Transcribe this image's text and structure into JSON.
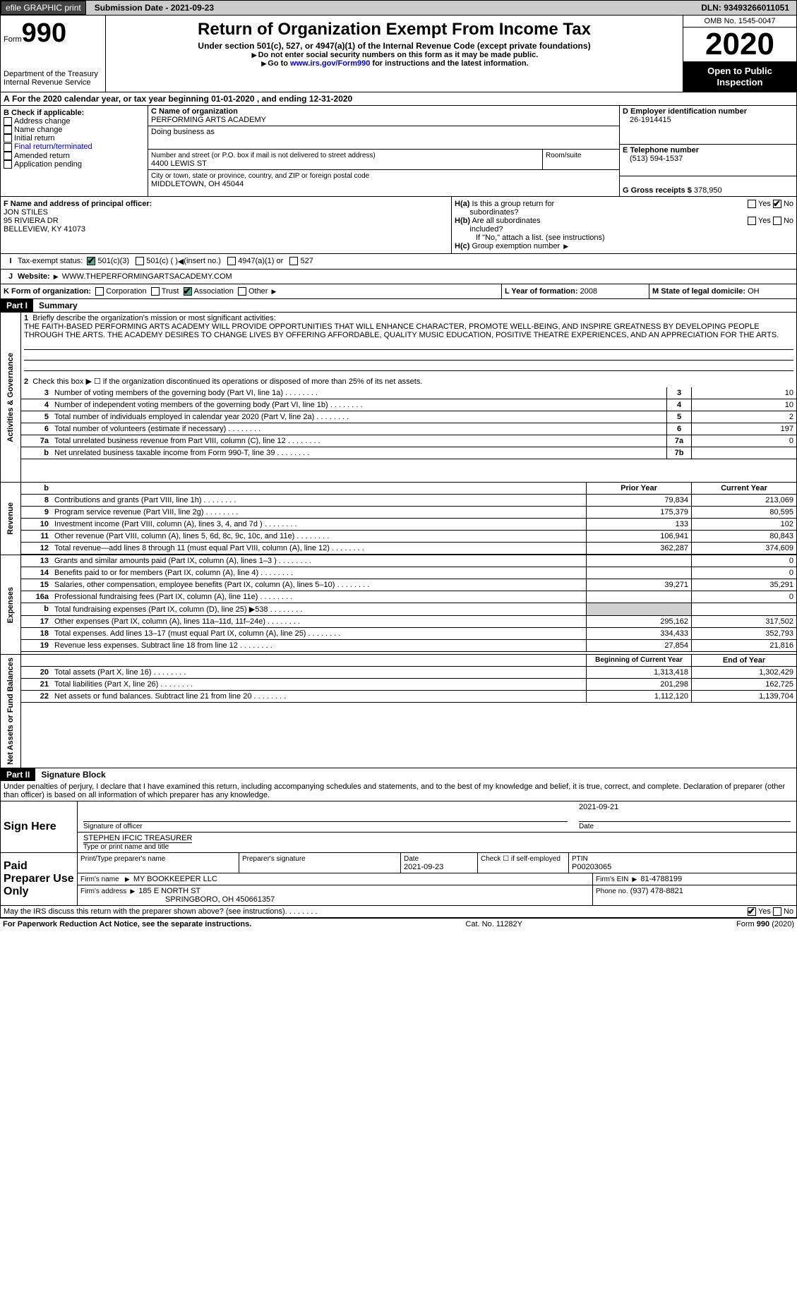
{
  "topbar": {
    "efile": "efile GRAPHIC print",
    "submission": "Submission Date - 2021-09-23",
    "dln": "DLN: 93493266011051"
  },
  "header": {
    "form_prefix": "Form",
    "form_number": "990",
    "dept": "Department of the Treasury\nInternal Revenue Service",
    "title": "Return of Organization Exempt From Income Tax",
    "subtitle1": "Under section 501(c), 527, or 4947(a)(1) of the Internal Revenue Code (except private foundations)",
    "subtitle2a": "Do not enter social security numbers on this form as it may be made public.",
    "subtitle2b_pre": "Go to ",
    "subtitle2b_link": "www.irs.gov/Form990",
    "subtitle2b_post": " for instructions and the latest information.",
    "omb": "OMB No. 1545-0047",
    "year": "2020",
    "inspection": "Open to Public Inspection"
  },
  "section_a": {
    "taxyear": "For the 2020 calendar year, or tax year beginning 01-01-2020   , and ending 12-31-2020",
    "b_label": "B Check if applicable:",
    "b_items": [
      "Address change",
      "Name change",
      "Initial return",
      "Final return/terminated",
      "Amended return",
      "Application pending"
    ],
    "c_label": "C Name of organization",
    "c_name": "PERFORMING ARTS ACADEMY",
    "dba": "Doing business as",
    "addr_label": "Number and street (or P.O. box if mail is not delivered to street address)",
    "room_label": "Room/suite",
    "addr": "4400 LEWIS ST",
    "city_label": "City or town, state or province, country, and ZIP or foreign postal code",
    "city": "MIDDLETOWN, OH  45044",
    "d_label": "D Employer identification number",
    "d_val": "26-1914415",
    "e_label": "E Telephone number",
    "e_val": "(513) 594-1537",
    "g_label": "G Gross receipts $",
    "g_val": "378,950",
    "f_label": "F Name and address of principal officer:",
    "f_name": "JON STILES",
    "f_addr1": "95 RIVIERA DR",
    "f_addr2": "BELLEVIEW, KY  41073",
    "ha_label": "H(a)  Is this a group return for subordinates?",
    "hb_label": "H(b)  Are all subordinates included?",
    "hb_note": "If \"No,\" attach a list. (see instructions)",
    "hc_label": "H(c)  Group exemption number",
    "yes": "Yes",
    "no": "No",
    "i_label": "Tax-exempt status:",
    "i_501c3": "501(c)(3)",
    "i_501c": "501(c) (  )",
    "i_insert": "(insert no.)",
    "i_4947": "4947(a)(1) or",
    "i_527": "527",
    "j_label": "Website:",
    "j_val": "WWW.THEPERFORMINGARTSACADEMY.COM",
    "k_label": "K Form of organization:",
    "k_corp": "Corporation",
    "k_trust": "Trust",
    "k_assoc": "Association",
    "k_other": "Other",
    "l_label": "L Year of formation:",
    "l_val": "2008",
    "m_label": "M State of legal domicile:",
    "m_val": "OH"
  },
  "part1": {
    "header": "Part I",
    "title": "Summary"
  },
  "governance": {
    "vlabel": "Activities & Governance",
    "line1_label": "Briefly describe the organization's mission or most significant activities:",
    "line1_text": "THE FAITH-BASED PERFORMING ARTS ACADEMY WILL PROVIDE OPPORTUNITIES THAT WILL ENHANCE CHARACTER, PROMOTE WELL-BEING, AND INSPIRE GREATNESS BY DEVELOPING PEOPLE THROUGH THE ARTS. THE ACADEMY DESIRES TO CHANGE LIVES BY OFFERING AFFORDABLE, QUALITY MUSIC EDUCATION, POSITIVE THEATRE EXPERIENCES, AND AN APPRECIATION FOR THE ARTS.",
    "line2": "Check this box ▶ ☐  if the organization discontinued its operations or disposed of more than 25% of its net assets.",
    "lines": [
      {
        "num": "3",
        "desc": "Number of voting members of the governing body (Part VI, line 1a)",
        "box": "3",
        "val": "10"
      },
      {
        "num": "4",
        "desc": "Number of independent voting members of the governing body (Part VI, line 1b)",
        "box": "4",
        "val": "10"
      },
      {
        "num": "5",
        "desc": "Total number of individuals employed in calendar year 2020 (Part V, line 2a)",
        "box": "5",
        "val": "2"
      },
      {
        "num": "6",
        "desc": "Total number of volunteers (estimate if necessary)",
        "box": "6",
        "val": "197"
      },
      {
        "num": "7a",
        "desc": "Total unrelated business revenue from Part VIII, column (C), line 12",
        "box": "7a",
        "val": "0"
      },
      {
        "num": "b",
        "desc": "Net unrelated business taxable income from Form 990-T, line 39",
        "box": "7b",
        "val": ""
      }
    ]
  },
  "revenue": {
    "vlabel": "Revenue",
    "prior": "Prior Year",
    "current": "Current Year",
    "lines": [
      {
        "num": "8",
        "desc": "Contributions and grants (Part VIII, line 1h)",
        "prior": "79,834",
        "curr": "213,069"
      },
      {
        "num": "9",
        "desc": "Program service revenue (Part VIII, line 2g)",
        "prior": "175,379",
        "curr": "80,595"
      },
      {
        "num": "10",
        "desc": "Investment income (Part VIII, column (A), lines 3, 4, and 7d )",
        "prior": "133",
        "curr": "102"
      },
      {
        "num": "11",
        "desc": "Other revenue (Part VIII, column (A), lines 5, 6d, 8c, 9c, 10c, and 11e)",
        "prior": "106,941",
        "curr": "80,843"
      },
      {
        "num": "12",
        "desc": "Total revenue—add lines 8 through 11 (must equal Part VIII, column (A), line 12)",
        "prior": "362,287",
        "curr": "374,609"
      }
    ]
  },
  "expenses": {
    "vlabel": "Expenses",
    "lines": [
      {
        "num": "13",
        "desc": "Grants and similar amounts paid (Part IX, column (A), lines 1–3 )",
        "prior": "",
        "curr": "0"
      },
      {
        "num": "14",
        "desc": "Benefits paid to or for members (Part IX, column (A), line 4)",
        "prior": "",
        "curr": "0"
      },
      {
        "num": "15",
        "desc": "Salaries, other compensation, employee benefits (Part IX, column (A), lines 5–10)",
        "prior": "39,271",
        "curr": "35,291"
      },
      {
        "num": "16a",
        "desc": "Professional fundraising fees (Part IX, column (A), line 11e)",
        "prior": "",
        "curr": "0"
      },
      {
        "num": "b",
        "desc": "Total fundraising expenses (Part IX, column (D), line 25) ▶538",
        "prior": "shade",
        "curr": "shade"
      },
      {
        "num": "17",
        "desc": "Other expenses (Part IX, column (A), lines 11a–11d, 11f–24e)",
        "prior": "295,162",
        "curr": "317,502"
      },
      {
        "num": "18",
        "desc": "Total expenses. Add lines 13–17 (must equal Part IX, column (A), line 25)",
        "prior": "334,433",
        "curr": "352,793"
      },
      {
        "num": "19",
        "desc": "Revenue less expenses. Subtract line 18 from line 12",
        "prior": "27,854",
        "curr": "21,816"
      }
    ]
  },
  "netassets": {
    "vlabel": "Net Assets or Fund Balances",
    "begin": "Beginning of Current Year",
    "end": "End of Year",
    "lines": [
      {
        "num": "20",
        "desc": "Total assets (Part X, line 16)",
        "prior": "1,313,418",
        "curr": "1,302,429"
      },
      {
        "num": "21",
        "desc": "Total liabilities (Part X, line 26)",
        "prior": "201,298",
        "curr": "162,725"
      },
      {
        "num": "22",
        "desc": "Net assets or fund balances. Subtract line 21 from line 20",
        "prior": "1,112,120",
        "curr": "1,139,704"
      }
    ]
  },
  "part2": {
    "header": "Part II",
    "title": "Signature Block",
    "perjury": "Under penalties of perjury, I declare that I have examined this return, including accompanying schedules and statements, and to the best of my knowledge and belief, it is true, correct, and complete. Declaration of preparer (other than officer) is based on all information of which preparer has any knowledge.",
    "sign_here": "Sign Here",
    "sig_officer": "Signature of officer",
    "sig_date": "Date",
    "sig_date_val": "2021-09-21",
    "officer_name": "STEPHEN IFCIC TREASURER",
    "officer_type": "Type or print name and title",
    "paid": "Paid Preparer Use Only",
    "prep_name": "Print/Type preparer's name",
    "prep_sig": "Preparer's signature",
    "prep_date": "Date",
    "prep_date_val": "2021-09-23",
    "check_se": "Check ☐ if self-employed",
    "ptin": "PTIN",
    "ptin_val": "P00203065",
    "firm_name_label": "Firm's name",
    "firm_name": "MY BOOKKEEPER LLC",
    "firm_ein_label": "Firm's EIN",
    "firm_ein": "81-4788199",
    "firm_addr_label": "Firm's address",
    "firm_addr1": "185 E NORTH ST",
    "firm_addr2": "SPRINGBORO, OH  450661357",
    "phone_label": "Phone no.",
    "phone": "(937) 478-8821",
    "discuss": "May the IRS discuss this return with the preparer shown above? (see instructions)"
  },
  "footer": {
    "pra": "For Paperwork Reduction Act Notice, see the separate instructions.",
    "cat": "Cat. No. 11282Y",
    "form": "Form 990 (2020)"
  }
}
